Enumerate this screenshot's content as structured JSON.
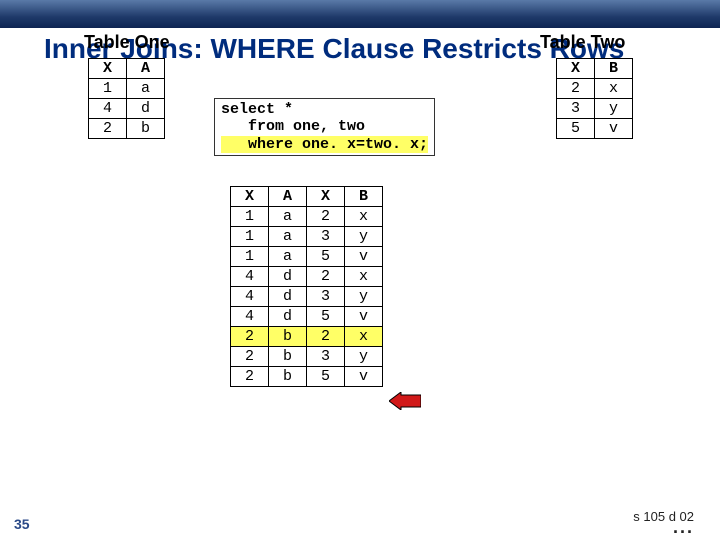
{
  "title": "Inner Joins: WHERE Clause Restricts Rows",
  "labels": {
    "one": "Table One",
    "two": "Table Two"
  },
  "tableOne": {
    "head": [
      "X",
      "A"
    ],
    "rows": [
      [
        "1",
        "a"
      ],
      [
        "4",
        "d"
      ],
      [
        "2",
        "b"
      ]
    ]
  },
  "tableTwo": {
    "head": [
      "X",
      "B"
    ],
    "rows": [
      [
        "2",
        "x"
      ],
      [
        "3",
        "y"
      ],
      [
        "5",
        "v"
      ]
    ]
  },
  "code": {
    "l1": "select *",
    "l2": "   from one, two",
    "l3": "   where one. x=two. x;"
  },
  "resultTable": {
    "head": [
      "X",
      "A",
      "X",
      "B"
    ],
    "rows": [
      [
        "1",
        "a",
        "2",
        "x"
      ],
      [
        "1",
        "a",
        "3",
        "y"
      ],
      [
        "1",
        "a",
        "5",
        "v"
      ],
      [
        "4",
        "d",
        "2",
        "x"
      ],
      [
        "4",
        "d",
        "3",
        "y"
      ],
      [
        "4",
        "d",
        "5",
        "v"
      ],
      [
        "2",
        "b",
        "2",
        "x"
      ],
      [
        "2",
        "b",
        "3",
        "y"
      ],
      [
        "2",
        "b",
        "5",
        "v"
      ]
    ],
    "highlightRow": 6
  },
  "colors": {
    "titleColor": "#002c7d",
    "highlight": "#ffff66",
    "arrowFill": "#d11919",
    "arrowStroke": "#000000"
  },
  "pageNumber": "35",
  "slideId": "s 105 d 02",
  "ellipsis": "..."
}
